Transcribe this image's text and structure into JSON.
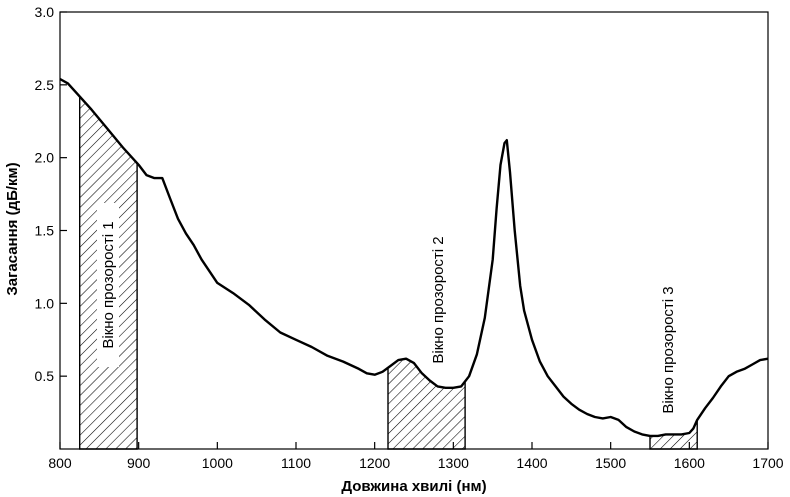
{
  "chart_data": {
    "type": "line",
    "title": "",
    "xlabel": "Довжина хвилі (нм)",
    "ylabel": "Загасання (дБ/км)",
    "xlim": [
      800,
      1700
    ],
    "ylim": [
      0,
      3.0
    ],
    "x_ticks": [
      "800",
      "900",
      "1000",
      "1100",
      "1200",
      "1300",
      "1400",
      "1500",
      "1600",
      "1700"
    ],
    "y_ticks": [
      "0.5",
      "1.0",
      "1.5",
      "2.0",
      "2.5",
      "3.0"
    ],
    "grid": false,
    "legend": "none",
    "line_color": "#000000",
    "series": [
      {
        "x": [
          800,
          810,
          820,
          840,
          860,
          880,
          900,
          910,
          920,
          930,
          940,
          950,
          960,
          970,
          980,
          990,
          1000,
          1020,
          1040,
          1060,
          1080,
          1100,
          1120,
          1140,
          1160,
          1180,
          1190,
          1200,
          1210,
          1220,
          1230,
          1240,
          1250,
          1260,
          1270,
          1280,
          1290,
          1300,
          1310,
          1320,
          1330,
          1340,
          1350,
          1355,
          1360,
          1365,
          1368,
          1372,
          1378,
          1385,
          1390,
          1400,
          1410,
          1420,
          1430,
          1440,
          1450,
          1460,
          1470,
          1480,
          1490,
          1500,
          1510,
          1520,
          1530,
          1540,
          1550,
          1560,
          1570,
          1580,
          1590,
          1600,
          1605,
          1610,
          1620,
          1630,
          1640,
          1650,
          1660,
          1670,
          1680,
          1690,
          1700
        ],
        "y": [
          2.54,
          2.51,
          2.45,
          2.33,
          2.2,
          2.07,
          1.95,
          1.88,
          1.86,
          1.86,
          1.72,
          1.58,
          1.48,
          1.4,
          1.3,
          1.22,
          1.14,
          1.07,
          0.99,
          0.89,
          0.8,
          0.75,
          0.7,
          0.64,
          0.6,
          0.55,
          0.52,
          0.51,
          0.53,
          0.57,
          0.61,
          0.62,
          0.59,
          0.52,
          0.47,
          0.43,
          0.42,
          0.42,
          0.43,
          0.5,
          0.65,
          0.9,
          1.3,
          1.65,
          1.95,
          2.1,
          2.12,
          1.9,
          1.5,
          1.12,
          0.95,
          0.75,
          0.6,
          0.5,
          0.43,
          0.36,
          0.31,
          0.27,
          0.24,
          0.22,
          0.21,
          0.22,
          0.2,
          0.15,
          0.12,
          0.1,
          0.09,
          0.09,
          0.1,
          0.1,
          0.1,
          0.11,
          0.14,
          0.2,
          0.28,
          0.35,
          0.43,
          0.5,
          0.53,
          0.55,
          0.58,
          0.61,
          0.62
        ]
      }
    ],
    "windows": [
      {
        "label": "Вікно прозорості 1",
        "x_start": 825,
        "x_end": 898
      },
      {
        "label": "Вікно прозорості 2",
        "x_start": 1217,
        "x_end": 1315
      },
      {
        "label": "Вікно прозорості 3",
        "x_start": 1550,
        "x_end": 1610
      }
    ]
  }
}
